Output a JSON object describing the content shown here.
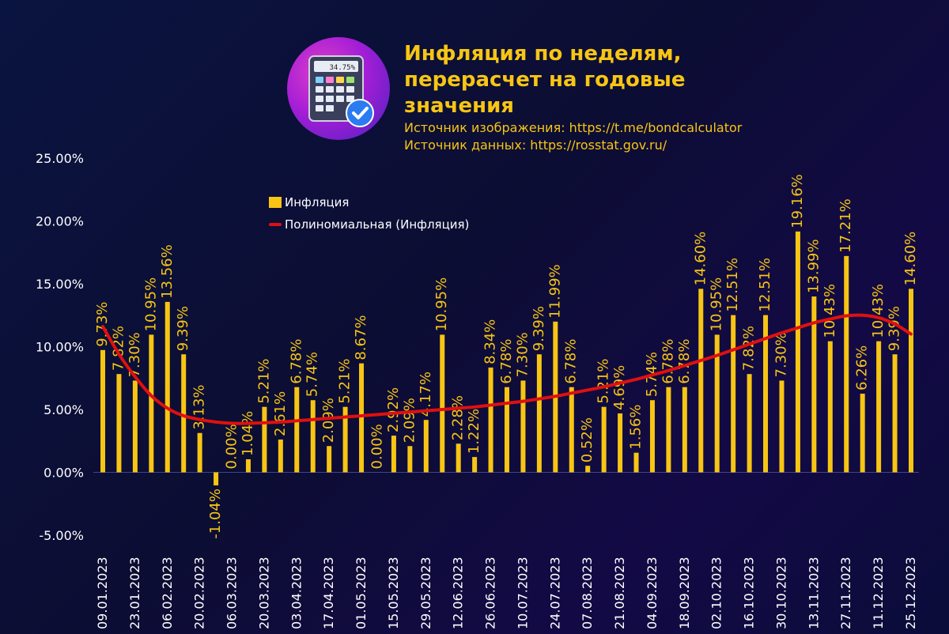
{
  "header": {
    "title_lines": [
      "Инфляция по неделям,",
      "перерасчет на годовые",
      "значения"
    ],
    "source_image": "Источник изображения: https://t.me/bondcalculator",
    "source_data": "Источник данных: https://rosstat.gov.ru/"
  },
  "logo": {
    "icon": "calculator-icon",
    "badge_icon": "check-badge-icon",
    "screen_text": "34.75%"
  },
  "colors": {
    "bar": "#f7c514",
    "trend": "#e01010",
    "text": "#ffffff",
    "label": "#f7c514",
    "badge": "#2a7cf0"
  },
  "chart_data": {
    "type": "bar",
    "ylim": [
      -5,
      25
    ],
    "y_ticks": [
      "-5.00%",
      "0.00%",
      "5.00%",
      "10.00%",
      "15.00%",
      "20.00%",
      "25.00%"
    ],
    "legend": {
      "position": "top-center",
      "bar_label": "Инфляция",
      "line_label": "Полиномиальная (Инфляция)"
    },
    "x_tick_labels": [
      "09.01.2023",
      "23.01.2023",
      "06.02.2023",
      "20.02.2023",
      "06.03.2023",
      "20.03.2023",
      "03.04.2023",
      "17.04.2023",
      "01.05.2023",
      "15.05.2023",
      "29.05.2023",
      "12.06.2023",
      "26.06.2023",
      "10.07.2023",
      "24.07.2023",
      "07.08.2023",
      "21.08.2023",
      "04.09.2023",
      "18.09.2023",
      "02.10.2023",
      "16.10.2023",
      "30.10.2023",
      "13.11.2023",
      "27.11.2023",
      "11.12.2023",
      "25.12.2023"
    ],
    "series": [
      {
        "values": [
          9.73,
          7.82,
          7.3,
          10.95,
          13.56,
          9.39,
          3.13,
          -1.04,
          0.0,
          1.04,
          5.21,
          2.61,
          6.78,
          5.74,
          2.09,
          5.21,
          8.67,
          0.0,
          2.92,
          2.09,
          4.17,
          10.95,
          2.28,
          1.22,
          8.34,
          6.78,
          7.3,
          9.39,
          11.99,
          6.78,
          0.52,
          5.21,
          4.69,
          1.56,
          5.74,
          6.78,
          6.78,
          14.6,
          10.95,
          12.51,
          7.82,
          12.51,
          7.3,
          19.16,
          13.99,
          10.43,
          17.21,
          6.26,
          10.43,
          9.39,
          14.6
        ],
        "labels": [
          "9.73%",
          "7.82%",
          "7.30%",
          "10.95%",
          "13.56%",
          "9.39%",
          "3.13%",
          "-1.04%",
          "0.00%",
          "1.04%",
          "5.21%",
          "2.61%",
          "6.78%",
          "5.74%",
          "2.09%",
          "5.21%",
          "8.67%",
          "0.00%",
          "2.92%",
          "2.09%",
          "4.17%",
          "10.95%",
          "2.28%",
          "1.22%",
          "8.34%",
          "6.78%",
          "7.30%",
          "9.39%",
          "11.99%",
          "6.78%",
          "0.52%",
          "5.21%",
          "4.69%",
          "1.56%",
          "5.74%",
          "6.78%",
          "6.78%",
          "14.60%",
          "10.95%",
          "12.51%",
          "7.82%",
          "12.51%",
          "7.30%",
          "19.16%",
          "13.99%",
          "10.43%",
          "17.21%",
          "6.26%",
          "10.43%",
          "9.39%",
          "14.60%"
        ]
      },
      {
        "values": [
          11.6,
          9.4,
          7.6,
          6.1,
          5.1,
          4.5,
          4.2,
          4.0,
          3.9,
          3.9,
          3.95,
          4.0,
          4.1,
          4.2,
          4.3,
          4.4,
          4.5,
          4.6,
          4.7,
          4.8,
          4.9,
          5.0,
          5.1,
          5.2,
          5.35,
          5.5,
          5.65,
          5.85,
          6.05,
          6.3,
          6.55,
          6.8,
          7.1,
          7.4,
          7.75,
          8.1,
          8.5,
          8.9,
          9.3,
          9.75,
          10.2,
          10.65,
          11.1,
          11.5,
          11.9,
          12.2,
          12.45,
          12.5,
          12.3,
          11.8,
          11.0
        ]
      }
    ]
  }
}
